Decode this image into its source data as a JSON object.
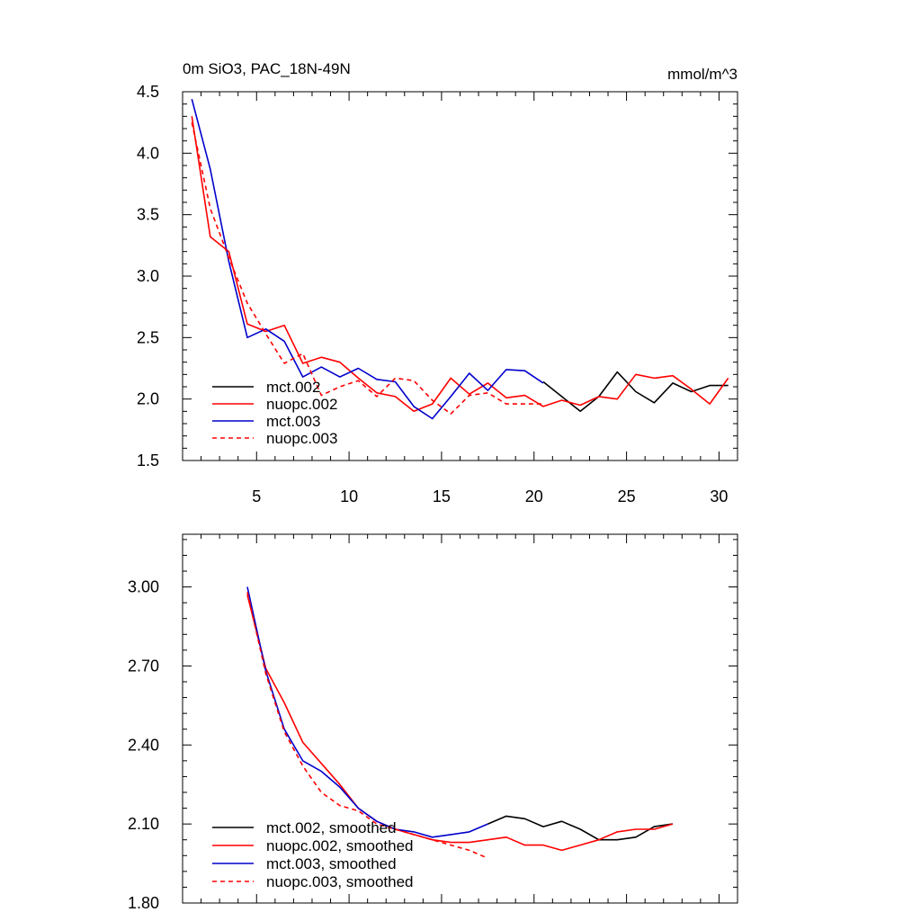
{
  "chart_data": [
    {
      "type": "line",
      "title": "0m SiO3, PAC_18N-49N",
      "units": "mmol/m^3",
      "xlim": [
        1,
        31
      ],
      "ylim": [
        1.5,
        4.5
      ],
      "x_ticks": [
        5,
        10,
        15,
        20,
        25,
        30
      ],
      "y_ticks": [
        1.5,
        2.0,
        2.5,
        3.0,
        3.5,
        4.0,
        4.5
      ],
      "y_tick_labels": [
        "1.5",
        "2.0",
        "2.5",
        "3.0",
        "3.5",
        "4.0",
        "4.5"
      ],
      "legend_placement": "bottom-left",
      "series": [
        {
          "name": "mct.002",
          "color": "#000000",
          "dash": false,
          "x": [
            20.5,
            21.5,
            22.5,
            23.5,
            24.5,
            25.5,
            26.5,
            27.5,
            28.5,
            29.5,
            30.5
          ],
          "y": [
            2.14,
            2.02,
            1.9,
            2.02,
            2.22,
            2.06,
            1.97,
            2.13,
            2.06,
            2.11,
            2.11
          ]
        },
        {
          "name": "nuopc.002",
          "color": "#ff0000",
          "dash": false,
          "x": [
            1.5,
            2.5,
            3.5,
            4.5,
            5.5,
            6.5,
            7.5,
            8.5,
            9.5,
            10.5,
            11.5,
            12.5,
            13.5,
            14.5,
            15.5,
            16.5,
            17.5,
            18.5,
            19.5,
            20.5,
            21.5,
            22.5,
            23.5,
            24.5,
            25.5,
            26.5,
            27.5,
            28.5,
            29.5,
            30.5
          ],
          "y": [
            4.3,
            3.32,
            3.2,
            2.61,
            2.55,
            2.6,
            2.29,
            2.34,
            2.3,
            2.17,
            2.05,
            2.02,
            1.9,
            1.96,
            2.17,
            2.04,
            2.13,
            2.01,
            2.03,
            1.94,
            1.99,
            1.95,
            2.02,
            2.0,
            2.2,
            2.17,
            2.19,
            2.08,
            1.96,
            2.17
          ]
        },
        {
          "name": "mct.003",
          "color": "#0000cc",
          "dash": false,
          "x": [
            1.5,
            2.5,
            3.5,
            4.5,
            5.5,
            6.5,
            7.5,
            8.5,
            9.5,
            10.5,
            11.5,
            12.5,
            13.5,
            14.5,
            15.5,
            16.5,
            17.5,
            18.5,
            19.5,
            20.5
          ],
          "y": [
            4.44,
            3.87,
            3.12,
            2.5,
            2.57,
            2.47,
            2.18,
            2.26,
            2.18,
            2.25,
            2.16,
            2.14,
            1.94,
            1.84,
            2.02,
            2.21,
            2.07,
            2.24,
            2.23,
            2.13
          ]
        },
        {
          "name": "nuopc.003",
          "color": "#ff0000",
          "dash": true,
          "x": [
            1.5,
            2.5,
            3.5,
            4.5,
            5.5,
            6.5,
            7.5,
            8.5,
            9.5,
            10.5,
            11.5,
            12.5,
            13.5,
            14.5,
            15.5,
            16.5,
            17.5,
            18.5,
            19.5,
            20.5
          ],
          "y": [
            4.25,
            3.55,
            3.15,
            2.78,
            2.53,
            2.29,
            2.37,
            2.03,
            2.1,
            2.15,
            2.02,
            2.17,
            2.15,
            1.99,
            1.88,
            2.03,
            2.05,
            1.96,
            1.96,
            1.96
          ]
        }
      ]
    },
    {
      "type": "line",
      "xlim": [
        1,
        31
      ],
      "ylim": [
        1.8,
        3.2
      ],
      "x_ticks": [
        5,
        10,
        15,
        20,
        25,
        30
      ],
      "y_ticks": [
        1.8,
        2.1,
        2.4,
        2.7,
        3.0
      ],
      "y_tick_labels": [
        "1.80",
        "2.10",
        "2.40",
        "2.70",
        "3.00"
      ],
      "legend_placement": "bottom-left",
      "series": [
        {
          "name": "mct.002, smoothed",
          "color": "#000000",
          "dash": false,
          "x": [
            17.5,
            18.5,
            19.5,
            20.5,
            21.5,
            22.5,
            23.5,
            24.5,
            25.5,
            26.5,
            27.5
          ],
          "y": [
            2.1,
            2.13,
            2.12,
            2.09,
            2.11,
            2.08,
            2.04,
            2.04,
            2.05,
            2.09,
            2.1
          ]
        },
        {
          "name": "nuopc.002, smoothed",
          "color": "#ff0000",
          "dash": false,
          "x": [
            4.5,
            5.5,
            6.5,
            7.5,
            8.5,
            9.5,
            10.5,
            11.5,
            12.5,
            13.5,
            14.5,
            15.5,
            16.5,
            17.5,
            18.5,
            19.5,
            20.5,
            21.5,
            22.5,
            23.5,
            24.5,
            25.5,
            26.5,
            27.5
          ],
          "y": [
            2.97,
            2.69,
            2.56,
            2.41,
            2.33,
            2.25,
            2.16,
            2.11,
            2.08,
            2.06,
            2.04,
            2.03,
            2.03,
            2.04,
            2.05,
            2.02,
            2.02,
            2.0,
            2.02,
            2.04,
            2.07,
            2.08,
            2.08,
            2.1
          ]
        },
        {
          "name": "mct.003, smoothed",
          "color": "#0000cc",
          "dash": false,
          "x": [
            4.5,
            5.5,
            6.5,
            7.5,
            8.5,
            9.5,
            10.5,
            11.5,
            12.5,
            13.5,
            14.5,
            15.5,
            16.5,
            17.5
          ],
          "y": [
            3.0,
            2.68,
            2.46,
            2.34,
            2.3,
            2.24,
            2.16,
            2.11,
            2.08,
            2.07,
            2.05,
            2.06,
            2.07,
            2.1
          ]
        },
        {
          "name": "nuopc.003, smoothed",
          "color": "#ff0000",
          "dash": true,
          "x": [
            4.5,
            5.5,
            6.5,
            7.5,
            8.5,
            9.5,
            10.5,
            11.5,
            12.5,
            13.5,
            14.5,
            15.5,
            16.5,
            17.5
          ],
          "y": [
            2.98,
            2.67,
            2.45,
            2.32,
            2.22,
            2.17,
            2.15,
            2.1,
            2.08,
            2.06,
            2.04,
            2.02,
            2.0,
            1.97
          ]
        }
      ]
    }
  ]
}
